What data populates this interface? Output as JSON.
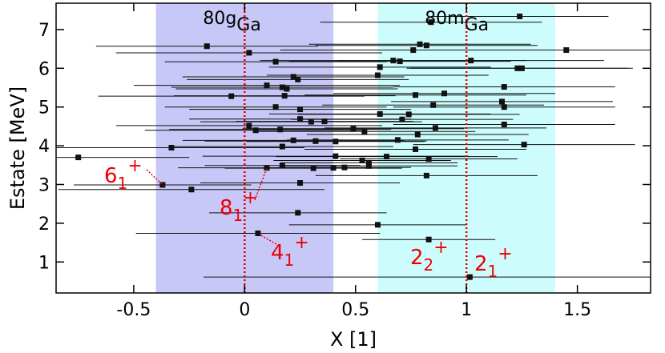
{
  "chart_data": {
    "type": "scatter",
    "xlabel": "X [1]",
    "ylabel": "Estate [MeV]",
    "xlim": [
      -0.85,
      1.83
    ],
    "ylim": [
      0.2,
      7.68
    ],
    "xticks": [
      -0.5,
      0,
      0.5,
      1,
      1.5
    ],
    "yticks": [
      1,
      2,
      3,
      4,
      5,
      6,
      7
    ],
    "regions": [
      {
        "xmin": -0.4,
        "xmax": 0.4,
        "color": "#c8c8f8",
        "mass": "80g",
        "element": "Ga"
      },
      {
        "xmin": 0.6,
        "xmax": 1.4,
        "color": "#ccfcfc",
        "mass": "80m",
        "element": "Ga"
      }
    ],
    "vlines": [
      0,
      1
    ],
    "vline_color": "#e00000",
    "annotations": [
      {
        "spin": "6",
        "index": "1",
        "parity": "+"
      },
      {
        "spin": "8",
        "index": "1",
        "parity": "+"
      },
      {
        "spin": "4",
        "index": "1",
        "parity": "+"
      },
      {
        "spin": "2",
        "index": "2",
        "parity": "+"
      },
      {
        "spin": "2",
        "index": "1",
        "parity": "+"
      }
    ],
    "series": [
      {
        "color": "#111111",
        "x": [
          1.015,
          0.83,
          0.06,
          0.6,
          0.24,
          -0.24,
          -0.37,
          0.25,
          0.82,
          0.1,
          0.17,
          0.31,
          0.4,
          0.45,
          0.56,
          0.56,
          0.53,
          0.64,
          0.83,
          0.41,
          -0.75,
          -0.33,
          0.17,
          0.77,
          1.26,
          0.22,
          0.32,
          0.41,
          0.69,
          0.78,
          0.05,
          0.16,
          0.49,
          0.54,
          0.86,
          0.02,
          1.17,
          0.25,
          0.3,
          0.36,
          0.61,
          0.71,
          0.74,
          0.14,
          0.25,
          0.85,
          1.17,
          1.16,
          -0.06,
          0.18,
          0.77,
          0.9,
          0.1,
          0.17,
          0.19,
          1.17,
          0.22,
          0.24,
          0.6,
          0.61,
          0.14,
          0.67,
          0.7,
          1.02,
          1.23,
          1.25,
          1.45,
          0.02,
          -0.17,
          0.76,
          0.79,
          0.82,
          0.84,
          1.24
        ],
        "values": [
          0.61,
          1.58,
          1.74,
          1.96,
          2.27,
          2.87,
          2.99,
          3.04,
          3.23,
          3.43,
          3.49,
          3.42,
          3.43,
          3.44,
          3.48,
          3.56,
          3.62,
          3.72,
          3.66,
          3.73,
          3.7,
          3.95,
          3.98,
          3.91,
          4.03,
          4.14,
          4.12,
          4.11,
          4.15,
          4.29,
          4.4,
          4.42,
          4.44,
          4.37,
          4.46,
          4.52,
          4.55,
          4.69,
          4.62,
          4.63,
          4.82,
          4.68,
          4.81,
          5.0,
          4.94,
          5.05,
          5.0,
          5.14,
          5.28,
          5.29,
          5.31,
          5.35,
          5.56,
          5.51,
          5.47,
          5.52,
          5.78,
          5.71,
          5.82,
          6.03,
          6.17,
          6.2,
          6.18,
          6.2,
          6.0,
          6.0,
          6.47,
          6.4,
          6.57,
          6.47,
          6.62,
          6.59,
          7.19,
          7.34
        ],
        "xerr": [
          1.2,
          0.3,
          0.55,
          0.4,
          0.4,
          0.6,
          0.4,
          0.45,
          0.5,
          0.4,
          0.35,
          0.4,
          0.3,
          0.3,
          0.4,
          0.4,
          0.4,
          0.5,
          0.4,
          0.6,
          0.5,
          0.6,
          0.5,
          0.5,
          0.5,
          0.5,
          0.5,
          0.4,
          0.5,
          0.5,
          0.5,
          0.5,
          0.5,
          0.5,
          0.5,
          0.6,
          0.5,
          0.5,
          0.5,
          0.4,
          0.5,
          0.5,
          0.5,
          0.5,
          0.5,
          0.5,
          0.5,
          0.5,
          0.6,
          0.5,
          0.5,
          0.5,
          0.6,
          0.5,
          0.5,
          0.5,
          0.5,
          0.5,
          0.5,
          0.5,
          0.5,
          0.6,
          0.5,
          0.6,
          0.5,
          0.5,
          0.6,
          0.6,
          0.5,
          0.6,
          0.5,
          0.5,
          0.5,
          0.4
        ]
      }
    ]
  }
}
